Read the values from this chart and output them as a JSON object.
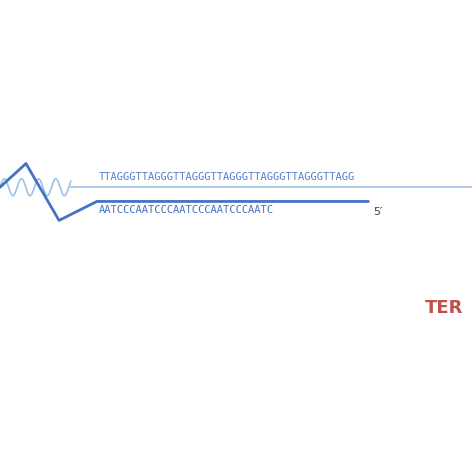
{
  "background_color": "#ffffff",
  "top_strand_text": "TTAGGGTTAGGGTTAGGGTTAGGGTTAGGGTTAGGGTTAGG",
  "bottom_strand_text": "AATCCCAATCCCAATCCCAATCCCAATC",
  "five_prime_label": "5′",
  "tert_label": "TER",
  "strand_color": "#4472C4",
  "tert_color": "#C0504D",
  "text_fontsize": 7.5,
  "tert_fontsize": 13,
  "five_prime_fontsize": 8,
  "wave_color": "#4472C4",
  "wave_light_color": "#9DC3E6",
  "top_line_color": "#9DC3E6"
}
